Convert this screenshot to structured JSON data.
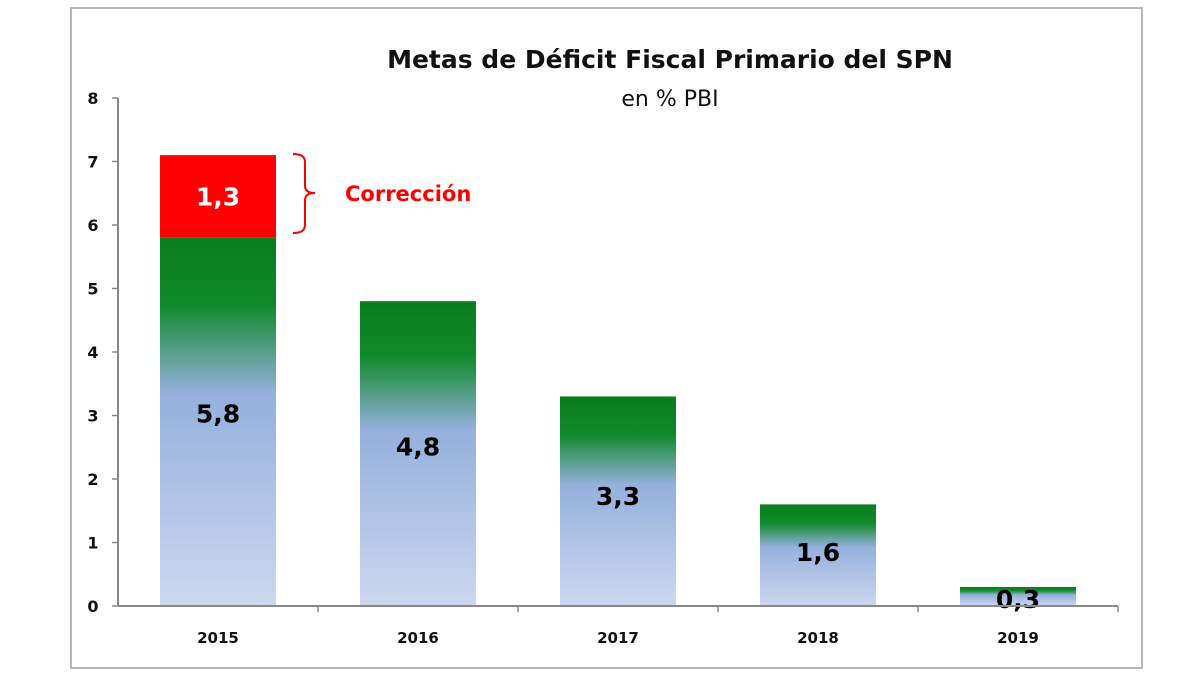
{
  "chart_data": {
    "type": "bar",
    "stacked": true,
    "title": "Metas de Déficit Fiscal Primario del SPN",
    "subtitle": "en % PBI",
    "xlabel": "",
    "ylabel": "",
    "categories": [
      "2015",
      "2016",
      "2017",
      "2018",
      "2019"
    ],
    "series": [
      {
        "values": [
          5.8,
          4.8,
          3.3,
          1.6,
          0.3
        ],
        "labels": [
          "5,8",
          "4,8",
          "3,3",
          "1,6",
          "0,3"
        ],
        "color": "#0a7d1c",
        "color_bottom": "#c8d4ee"
      },
      {
        "values": [
          1.3,
          0,
          0,
          0,
          0
        ],
        "labels": [
          "1,3",
          "",
          "",
          "",
          ""
        ],
        "color": "#ff0000"
      }
    ],
    "annotation": {
      "text": "Corrección",
      "color": "#ff0000"
    },
    "ylim": [
      0,
      8
    ],
    "yticks": [
      0,
      1,
      2,
      3,
      4,
      5,
      6,
      7,
      8
    ],
    "grid": false,
    "legend": "none"
  }
}
